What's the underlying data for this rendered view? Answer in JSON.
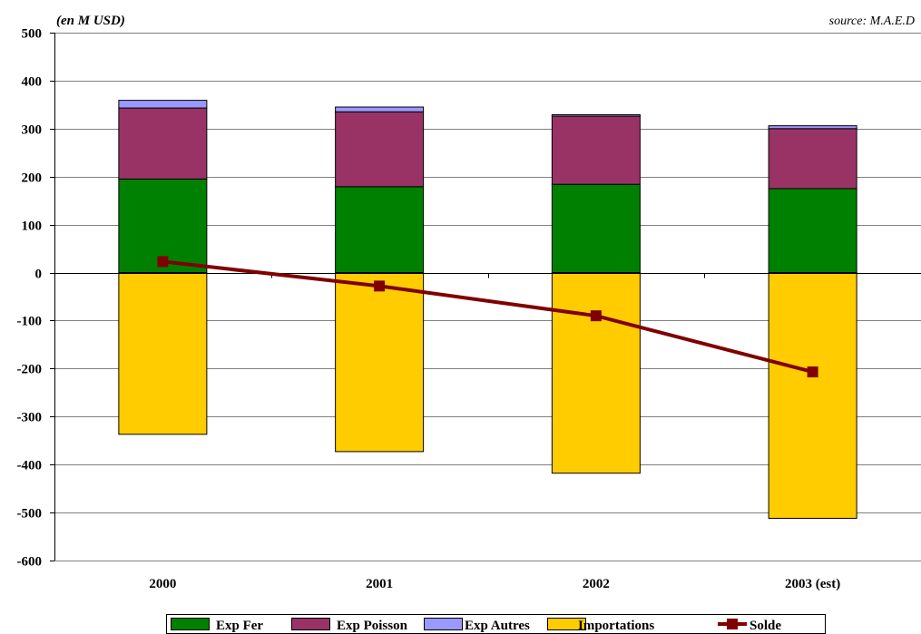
{
  "chart_data": {
    "type": "bar",
    "unit_label": "(en M USD)",
    "source": "source: M.A.E.D",
    "categories": [
      "2000",
      "2001",
      "2002",
      "2003 (est)"
    ],
    "ylim": [
      -600,
      500
    ],
    "yticks": [
      500,
      400,
      300,
      200,
      100,
      0,
      -100,
      -200,
      -300,
      -400,
      -500,
      -600
    ],
    "grid": true,
    "stacked": true,
    "legend_position": "bottom",
    "series": [
      {
        "name": "Exp Fer",
        "kind": "bar",
        "color": "#008000",
        "values": [
          195,
          179,
          184,
          175
        ]
      },
      {
        "name": "Exp Poisson",
        "kind": "bar",
        "color": "#993366",
        "values": [
          148,
          156,
          142,
          125
        ]
      },
      {
        "name": "Exp Autres",
        "kind": "bar",
        "color": "#9999FF",
        "values": [
          16,
          10,
          3,
          6
        ]
      },
      {
        "name": "Importations",
        "kind": "bar",
        "color": "#FFCC00",
        "values": [
          -337,
          -373,
          -418,
          -512
        ]
      },
      {
        "name": "Solde",
        "kind": "line",
        "color": "#800000",
        "values": [
          23,
          -28,
          -90,
          -207
        ]
      }
    ]
  }
}
